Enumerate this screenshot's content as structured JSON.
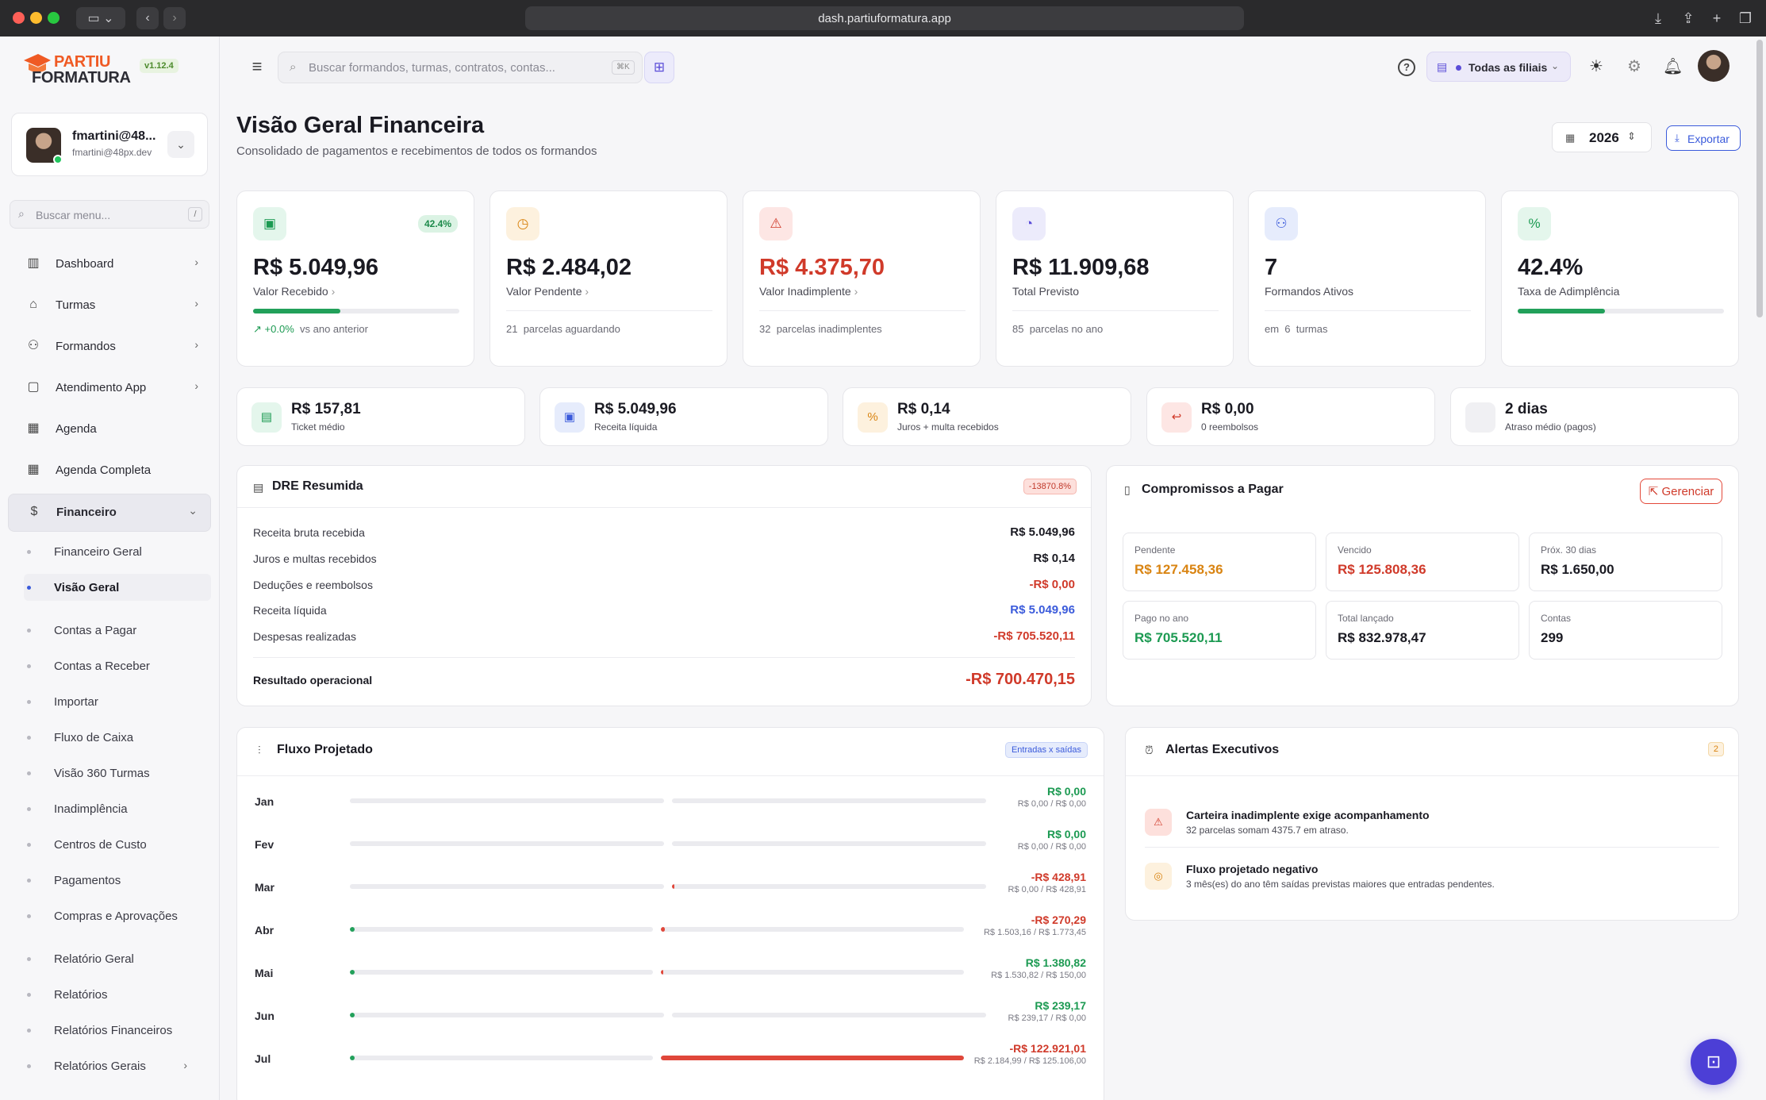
{
  "browser": {
    "url": "dash.partiuformatura.app"
  },
  "brand": {
    "line1": "PARTIU",
    "line2": "FORMATURA",
    "version": "v1.12.4"
  },
  "user": {
    "name": "fmartini@48...",
    "email": "fmartini@48px.dev"
  },
  "sidebar": {
    "search_placeholder": "Buscar menu...",
    "search_shortcut": "/",
    "items": [
      {
        "label": "Dashboard",
        "icon": "bar-chart-icon"
      },
      {
        "label": "Turmas",
        "icon": "graduation-cap-icon"
      },
      {
        "label": "Formandos",
        "icon": "user-icon"
      },
      {
        "label": "Atendimento App",
        "icon": "chat-icon"
      },
      {
        "label": "Agenda",
        "icon": "calendar-icon"
      },
      {
        "label": "Agenda Completa",
        "icon": "calendar-check-icon"
      },
      {
        "label": "Financeiro",
        "icon": "dollar-icon"
      }
    ],
    "subitems": [
      "Financeiro Geral",
      "Visão Geral",
      "Contas a Pagar",
      "Contas a Receber",
      "Importar",
      "Fluxo de Caixa",
      "Visão 360 Turmas",
      "Inadimplência",
      "Centros de Custo",
      "Pagamentos",
      "Compras e Aprovações",
      "Relatório Geral",
      "Relatórios",
      "Relatórios Financeiros",
      "Relatórios Gerais"
    ]
  },
  "topbar": {
    "search_placeholder": "Buscar formandos, turmas, contratos, contas...",
    "search_shortcut": "⌘K",
    "filial": "Todas as filiais"
  },
  "page": {
    "title": "Visão Geral Financeira",
    "subtitle": "Consolidado de pagamentos e recebimentos de todos os formandos",
    "year": "2026",
    "export_label": "Exportar"
  },
  "kpis": [
    {
      "value": "R$ 5.049,96",
      "label": "Valor Recebido",
      "badge": "42.4%",
      "progress": 0.424,
      "trend": "+0.0%",
      "trend_note": "vs ano anterior",
      "icon": "money-icon",
      "color": "#1c9a52"
    },
    {
      "value": "R$ 2.484,02",
      "label": "Valor Pendente",
      "foot_num": "21",
      "foot": "parcelas aguardando",
      "icon": "clock-icon",
      "color": "#d98412"
    },
    {
      "value": "R$ 4.375,70",
      "label": "Valor Inadimplente",
      "foot_num": "32",
      "foot": "parcelas inadimplentes",
      "icon": "warning-icon",
      "color": "#d03a2a"
    },
    {
      "value": "R$ 11.909,68",
      "label": "Total Previsto",
      "foot_num": "85",
      "foot": "parcelas no ano",
      "icon": "pie-chart-icon",
      "color": "#5b4dd8"
    },
    {
      "value": "7",
      "label": "Formandos Ativos",
      "foot_pre": "em",
      "foot_num": "6",
      "foot": "turmas",
      "icon": "users-icon",
      "color": "#3b5bdb"
    },
    {
      "value": "42.4%",
      "label": "Taxa de Adimplência",
      "progress": 0.424,
      "icon": "percent-icon",
      "color": "#1c9a52"
    }
  ],
  "minis": [
    {
      "value": "R$ 157,81",
      "label": "Ticket médio",
      "icon": "receipt-icon"
    },
    {
      "value": "R$ 5.049,96",
      "label": "Receita líquida",
      "icon": "banknote-icon"
    },
    {
      "value": "R$ 0,14",
      "label": "Juros + multa recebidos",
      "icon": "percent-icon"
    },
    {
      "value": "R$ 0,00",
      "label": "0 reembolsos",
      "icon": "refund-icon"
    },
    {
      "value": "2 dias",
      "label": "Atraso médio (pagos)",
      "icon": ""
    }
  ],
  "dre": {
    "title": "DRE Resumida",
    "badge": "-13870.8%",
    "rows": [
      {
        "label": "Receita bruta recebida",
        "value": "R$ 5.049,96"
      },
      {
        "label": "Juros e multas recebidos",
        "value": "R$ 0,14"
      },
      {
        "label": "Deduções e reembolsos",
        "value": "-R$ 0,00"
      },
      {
        "label": "Receita líquida",
        "value": "R$ 5.049,96"
      },
      {
        "label": "Despesas realizadas",
        "value": "-R$ 705.520,11"
      }
    ],
    "result_label": "Resultado operacional",
    "result_value": "-R$ 700.470,15"
  },
  "compromissos": {
    "title": "Compromissos a Pagar",
    "manage_label": "Gerenciar",
    "boxes": [
      {
        "label": "Pendente",
        "value": "R$ 127.458,36"
      },
      {
        "label": "Vencido",
        "value": "R$ 125.808,36"
      },
      {
        "label": "Próx. 30 dias",
        "value": "R$ 1.650,00"
      },
      {
        "label": "Pago no ano",
        "value": "R$ 705.520,11"
      },
      {
        "label": "Total lançado",
        "value": "R$ 832.978,47"
      },
      {
        "label": "Contas",
        "value": "299"
      }
    ]
  },
  "fluxo": {
    "title": "Fluxo Projetado",
    "badge": "Entradas x saídas",
    "rows": [
      {
        "month": "Jan",
        "net": "R$ 0,00",
        "detail": "R$ 0,00 / R$ 0,00",
        "in": 0,
        "out": 0,
        "positive": true
      },
      {
        "month": "Fev",
        "net": "R$ 0,00",
        "detail": "R$ 0,00 / R$ 0,00",
        "in": 0,
        "out": 0,
        "positive": true
      },
      {
        "month": "Mar",
        "net": "-R$ 428,91",
        "detail": "R$ 0,00 / R$ 428,91",
        "in": 0,
        "out": 0.004,
        "positive": false
      },
      {
        "month": "Abr",
        "net": "-R$ 270,29",
        "detail": "R$ 1.503,16 / R$ 1.773,45",
        "in": 0.012,
        "out": 0.014,
        "positive": false
      },
      {
        "month": "Mai",
        "net": "R$ 1.380,82",
        "detail": "R$ 1.530,82 / R$ 150,00",
        "in": 0.012,
        "out": 0.002,
        "positive": true
      },
      {
        "month": "Jun",
        "net": "R$ 239,17",
        "detail": "R$ 239,17 / R$ 0,00",
        "in": 0.002,
        "out": 0,
        "positive": true
      },
      {
        "month": "Jul",
        "net": "-R$ 122.921,01",
        "detail": "R$ 2.184,99 / R$ 125.106,00",
        "in": 0.017,
        "out": 1.0,
        "positive": false
      }
    ]
  },
  "alertas": {
    "title": "Alertas Executivos",
    "count": "2",
    "items": [
      {
        "title": "Carteira inadimplente exige acompanhamento",
        "desc": "32 parcelas somam 4375.7 em atraso."
      },
      {
        "title": "Fluxo projetado negativo",
        "desc": "3 mês(es) do ano têm saídas previstas maiores que entradas pendentes."
      }
    ]
  },
  "colors": {
    "accent": "#3b5bdb",
    "brand": "#ef5a24",
    "positive": "#1c9a52",
    "negative": "#d03a2a",
    "warning": "#d98412"
  }
}
